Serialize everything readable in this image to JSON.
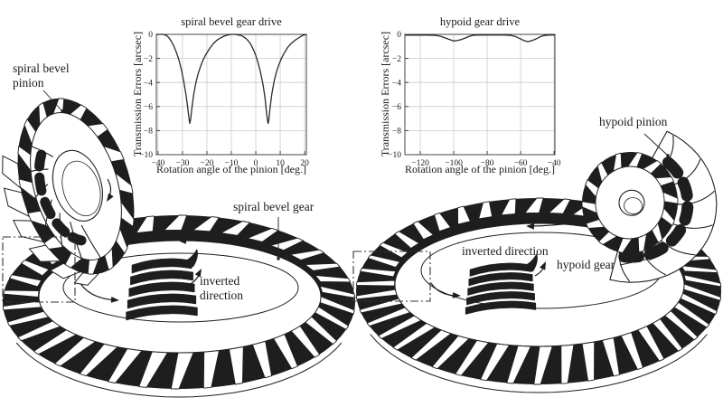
{
  "figure": {
    "background": "#ffffff",
    "ink": "#1e1e1e",
    "grid_color": "#cccccc",
    "border_color": "#444444",
    "curve_color": "#2a2a2a"
  },
  "chart_data": [
    {
      "type": "line",
      "title": "spiral bevel gear drive",
      "xlabel": "Rotation angle of the pinion [deg.]",
      "ylabel": "Transmission Errors [arcsec]",
      "xlim": [
        -40.7,
        20.7
      ],
      "ylim": [
        -10,
        0
      ],
      "xticks": [
        -40,
        -30,
        -20,
        -10,
        0,
        10,
        20
      ],
      "yticks": [
        0,
        -2,
        -4,
        -6,
        -8,
        -10
      ],
      "grid": true,
      "legend": "none",
      "series": [
        {
          "name": "transmission error",
          "points": [
            [
              -40.7,
              0
            ],
            [
              -38,
              0
            ],
            [
              -36.5,
              -0.1
            ],
            [
              -35.5,
              -0.3
            ],
            [
              -34.5,
              -0.6
            ],
            [
              -33.5,
              -1.0
            ],
            [
              -32.5,
              -1.5
            ],
            [
              -31.5,
              -2.1
            ],
            [
              -30.5,
              -2.9
            ],
            [
              -29.5,
              -3.9
            ],
            [
              -28.5,
              -5.1
            ],
            [
              -27.8,
              -6.2
            ],
            [
              -27.2,
              -7.2
            ],
            [
              -27,
              -7.4
            ],
            [
              -26.7,
              -7.1
            ],
            [
              -26.2,
              -6.2
            ],
            [
              -25.5,
              -5.1
            ],
            [
              -24.5,
              -4.0
            ],
            [
              -23.5,
              -3.2
            ],
            [
              -22.5,
              -2.6
            ],
            [
              -21.5,
              -2.1
            ],
            [
              -20.5,
              -1.7
            ],
            [
              -19,
              -1.2
            ],
            [
              -17.5,
              -0.8
            ],
            [
              -16,
              -0.5
            ],
            [
              -14.5,
              -0.3
            ],
            [
              -13,
              -0.15
            ],
            [
              -11.5,
              -0.05
            ],
            [
              -10,
              0
            ],
            [
              -8.5,
              0
            ],
            [
              -7,
              -0.05
            ],
            [
              -6,
              -0.1
            ],
            [
              -5,
              -0.2
            ],
            [
              -4,
              -0.35
            ],
            [
              -3,
              -0.55
            ],
            [
              -2,
              -0.85
            ],
            [
              -1,
              -1.25
            ],
            [
              0,
              -1.75
            ],
            [
              1,
              -2.4
            ],
            [
              2,
              -3.2
            ],
            [
              3,
              -4.2
            ],
            [
              3.8,
              -5.3
            ],
            [
              4.4,
              -6.5
            ],
            [
              4.9,
              -7.3
            ],
            [
              5.1,
              -7.4
            ],
            [
              5.4,
              -7.0
            ],
            [
              5.9,
              -6.0
            ],
            [
              6.6,
              -4.9
            ],
            [
              7.5,
              -3.9
            ],
            [
              8.5,
              -3.1
            ],
            [
              9.5,
              -2.5
            ],
            [
              10.5,
              -2.0
            ],
            [
              11.5,
              -1.6
            ],
            [
              13,
              -1.1
            ],
            [
              14.5,
              -0.75
            ],
            [
              16,
              -0.5
            ],
            [
              17.5,
              -0.3
            ],
            [
              19,
              -0.1
            ],
            [
              20.7,
              0
            ]
          ]
        }
      ]
    },
    {
      "type": "line",
      "title": "hypoid gear drive",
      "xlabel": "Rotation angle of the pinion [deg.]",
      "ylabel": "Transmission Errors [arcsec]",
      "xlim": [
        -129.2,
        -39.5
      ],
      "ylim": [
        -10,
        0
      ],
      "xticks": [
        -120,
        -100,
        -80,
        -60,
        -40
      ],
      "yticks": [
        0,
        -2,
        -4,
        -6,
        -8,
        -10
      ],
      "grid": true,
      "legend": "none",
      "series": [
        {
          "name": "transmission error",
          "points": [
            [
              -129,
              -0.06
            ],
            [
              -122,
              -0.06
            ],
            [
              -116,
              -0.06
            ],
            [
              -111,
              -0.08
            ],
            [
              -108,
              -0.15
            ],
            [
              -105,
              -0.3
            ],
            [
              -102,
              -0.45
            ],
            [
              -100,
              -0.55
            ],
            [
              -98,
              -0.52
            ],
            [
              -96,
              -0.45
            ],
            [
              -93,
              -0.3
            ],
            [
              -91,
              -0.18
            ],
            [
              -89,
              -0.09
            ],
            [
              -87,
              -0.06
            ],
            [
              -82,
              -0.05
            ],
            [
              -76,
              -0.05
            ],
            [
              -70,
              -0.05
            ],
            [
              -66,
              -0.08
            ],
            [
              -63,
              -0.18
            ],
            [
              -60,
              -0.38
            ],
            [
              -58,
              -0.52
            ],
            [
              -56,
              -0.6
            ],
            [
              -54,
              -0.55
            ],
            [
              -52,
              -0.45
            ],
            [
              -50,
              -0.32
            ],
            [
              -48,
              -0.18
            ],
            [
              -46,
              -0.1
            ],
            [
              -44,
              -0.06
            ],
            [
              -41,
              -0.05
            ],
            [
              -39.5,
              -0.05
            ]
          ]
        }
      ]
    }
  ],
  "annotations": {
    "left_pinion_label": "spiral bevel\npinion",
    "left_gear_label": "spiral bevel gear",
    "left_inverted_label": "inverted\ndirection",
    "right_pinion_label": "hypoid pinion",
    "right_gear_label": "hypoid gear",
    "right_inverted_label": "inverted direction"
  }
}
